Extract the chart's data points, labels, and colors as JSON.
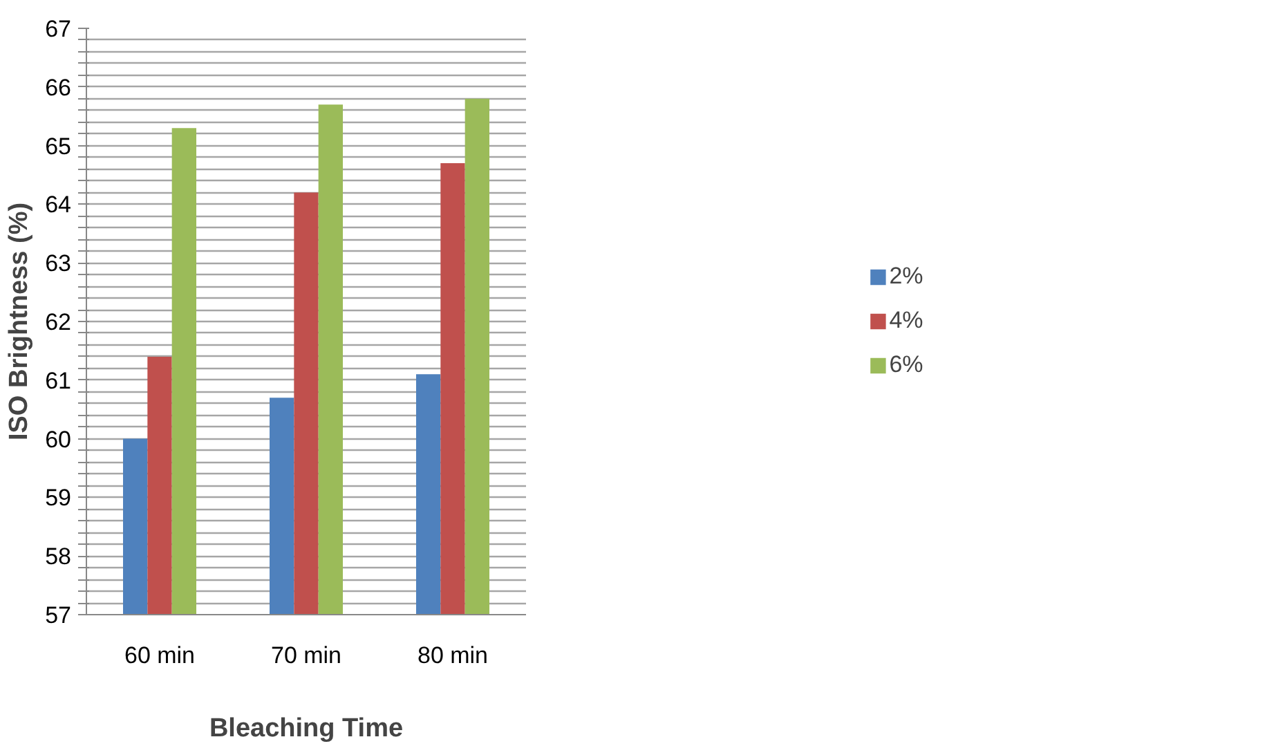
{
  "chart_data": {
    "type": "bar",
    "xlabel": "Bleaching Time",
    "ylabel": "ISO Brightness (%)",
    "categories": [
      "60 min",
      "70 min",
      "80 min"
    ],
    "series": [
      {
        "name": "2%",
        "color": "#4f81bd",
        "values": [
          60.0,
          60.7,
          61.1
        ]
      },
      {
        "name": "4%",
        "color": "#c0504d",
        "values": [
          61.4,
          64.2,
          64.7
        ]
      },
      {
        "name": "6%",
        "color": "#9bbb59",
        "values": [
          65.3,
          65.7,
          65.8
        ]
      }
    ],
    "ylim": [
      57,
      67
    ],
    "yticks": [
      57,
      {
        "value": 57.2,
        "label": null
      },
      {
        "value": 57.4,
        "label": null
      },
      {
        "value": 57.6,
        "label": null
      },
      {
        "value": 57.8,
        "label": null
      },
      58,
      {
        "value": 58.2,
        "label": null
      },
      {
        "value": 58.4,
        "label": null
      },
      {
        "value": 58.6,
        "label": null
      },
      {
        "value": 58.8,
        "label": null
      },
      59,
      {
        "value": 59.2,
        "label": null
      },
      {
        "value": 59.4,
        "label": null
      },
      {
        "value": 59.6,
        "label": null
      },
      {
        "value": 59.8,
        "label": null
      },
      60,
      {
        "value": 60.2,
        "label": null
      },
      {
        "value": 60.4,
        "label": null
      },
      {
        "value": 60.6,
        "label": null
      },
      {
        "value": 60.8,
        "label": null
      },
      61,
      {
        "value": 61.2,
        "label": null
      },
      {
        "value": 61.4,
        "label": null
      },
      {
        "value": 61.6,
        "label": null
      },
      {
        "value": 61.8,
        "label": null
      },
      62,
      {
        "value": 62.2,
        "label": null
      },
      {
        "value": 62.4,
        "label": null
      },
      {
        "value": 62.6,
        "label": null
      },
      {
        "value": 62.8,
        "label": null
      },
      63,
      {
        "value": 63.2,
        "label": null
      },
      {
        "value": 63.4,
        "label": null
      },
      {
        "value": 63.6,
        "label": null
      },
      {
        "value": 63.8,
        "label": null
      },
      64,
      {
        "value": 64.2,
        "label": null
      },
      {
        "value": 64.4,
        "label": null
      },
      {
        "value": 64.6,
        "label": null
      },
      {
        "value": 64.8,
        "label": null
      },
      65,
      {
        "value": 65.2,
        "label": null
      },
      {
        "value": 65.4,
        "label": null
      },
      {
        "value": 65.6,
        "label": null
      },
      {
        "value": 65.8,
        "label": null
      },
      66,
      {
        "value": 66.2,
        "label": null
      },
      {
        "value": 66.4,
        "label": null
      },
      {
        "value": 66.6,
        "label": null
      },
      {
        "value": 66.8,
        "label": null
      },
      67
    ],
    "grid": "y",
    "legend": "right"
  }
}
